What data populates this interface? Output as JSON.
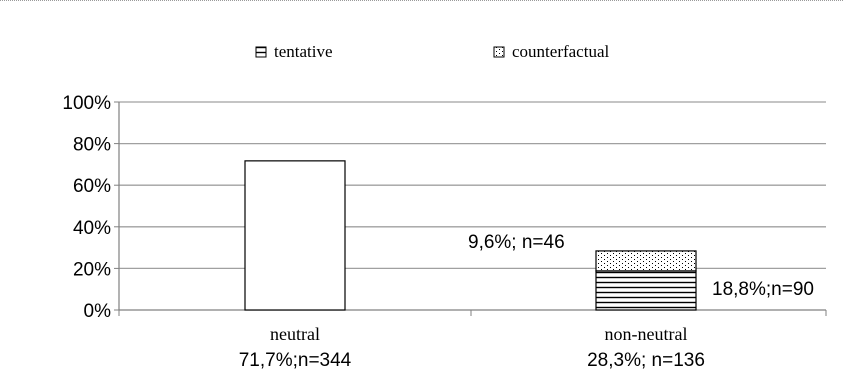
{
  "chart_data": {
    "type": "bar",
    "stacked": true,
    "categories": [
      "neutral",
      "non-neutral"
    ],
    "category_labels": [
      {
        "name": "neutral",
        "detail": "71,7%;n=344"
      },
      {
        "name": "non-neutral",
        "detail": "28,3%; n=136"
      }
    ],
    "series": [
      {
        "name": "",
        "values": [
          71.7,
          0
        ],
        "pattern": "solid"
      },
      {
        "name": "tentative",
        "values": [
          0,
          18.8
        ],
        "pattern": "horizontal-lines"
      },
      {
        "name": "counterfactual",
        "values": [
          0,
          9.6
        ],
        "pattern": "dots"
      }
    ],
    "data_labels": [
      {
        "text": "9,6%; n=46",
        "series": "counterfactual",
        "category": "non-neutral"
      },
      {
        "text": "18,8%;n=90",
        "series": "tentative",
        "category": "non-neutral"
      }
    ],
    "yticks": [
      "0%",
      "20%",
      "40%",
      "60%",
      "80%",
      "100%"
    ],
    "ylim": [
      0,
      100
    ],
    "grid": true,
    "legend_position": "top"
  },
  "colors": {
    "bar_fill": "#ffffff",
    "bar_stroke": "#000000",
    "grid": "#a0a0a0",
    "axis": "#808080",
    "text": "#000000"
  }
}
